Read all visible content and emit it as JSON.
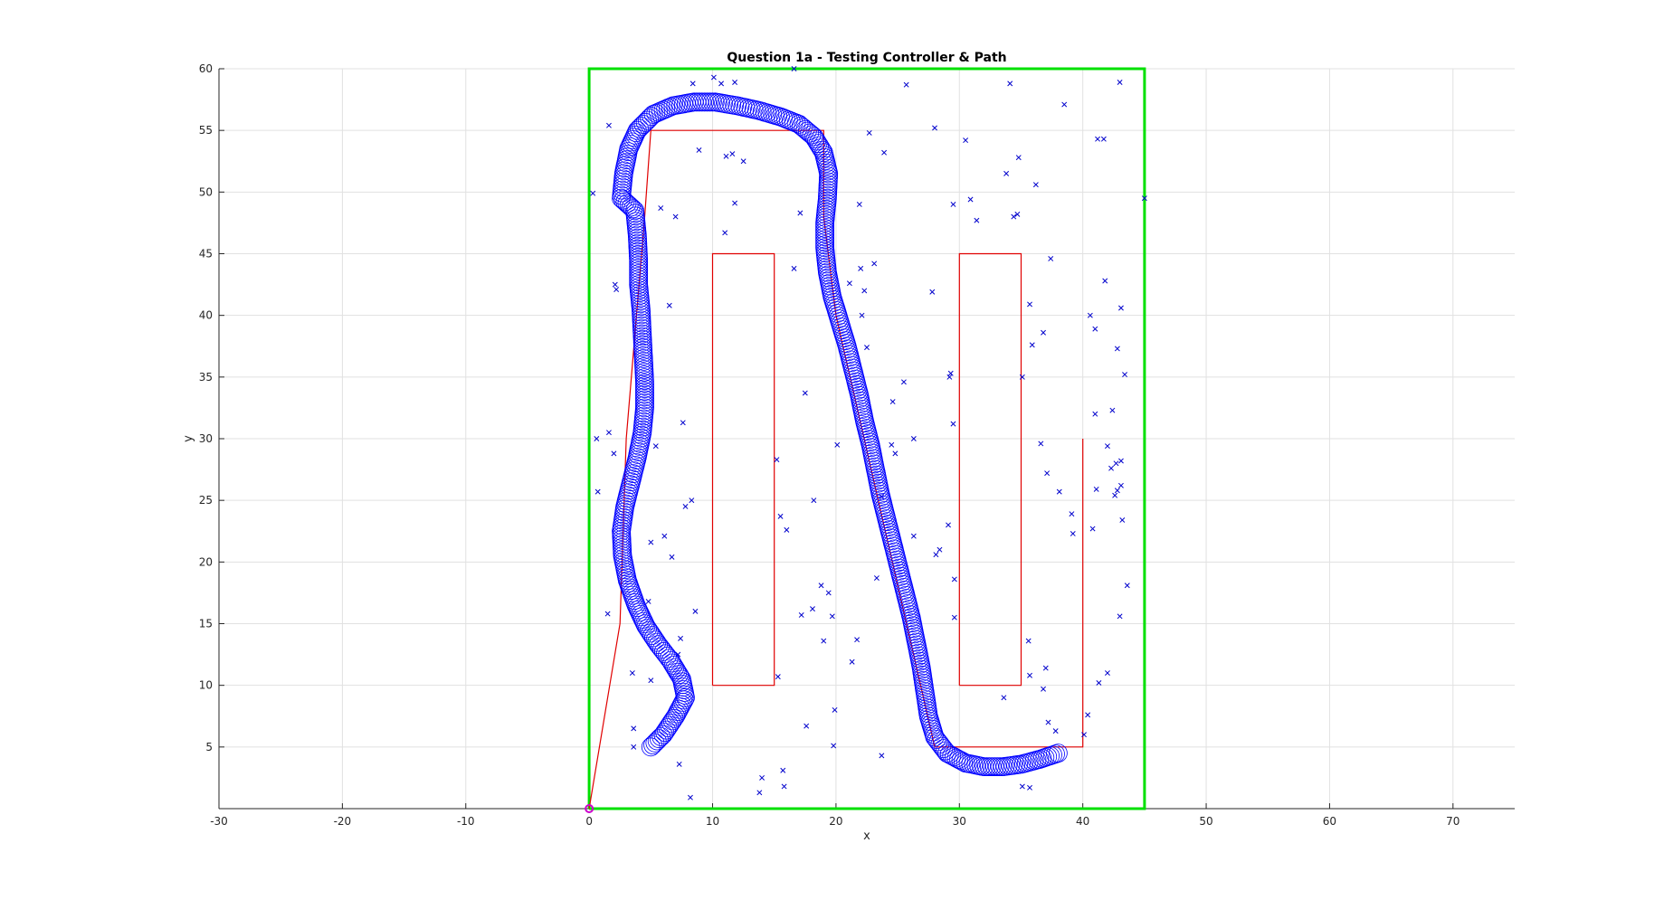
{
  "chart_data": {
    "type": "scatter",
    "title": "Question 1a - Testing Controller & Path",
    "xlabel": "x",
    "ylabel": "y",
    "xlim": [
      -30,
      75
    ],
    "ylim": [
      0,
      60
    ],
    "xticks": [
      -30,
      -20,
      -10,
      0,
      10,
      20,
      30,
      40,
      50,
      60,
      70
    ],
    "yticks": [
      5,
      10,
      15,
      20,
      25,
      30,
      35,
      40,
      45,
      50,
      55,
      60
    ],
    "grid": true,
    "colors": {
      "boundary": "#00e000",
      "obstacles": "#e00000",
      "path": "#e00000",
      "trajectory": "#0000ff",
      "samples": "#0000cc",
      "start": "#cc00cc"
    },
    "boundary": [
      [
        0,
        0
      ],
      [
        45,
        0
      ],
      [
        45,
        60
      ],
      [
        0,
        60
      ],
      [
        0,
        0
      ]
    ],
    "obstacles": [
      [
        [
          10,
          10
        ],
        [
          15,
          10
        ],
        [
          15,
          45
        ],
        [
          10,
          45
        ],
        [
          10,
          10
        ]
      ],
      [
        [
          30,
          10
        ],
        [
          35,
          10
        ],
        [
          35,
          45
        ],
        [
          30,
          45
        ],
        [
          30,
          10
        ]
      ]
    ],
    "path": [
      [
        0,
        0
      ],
      [
        2.5,
        15
      ],
      [
        3,
        30
      ],
      [
        4.5,
        48
      ],
      [
        5,
        55
      ],
      [
        19,
        55
      ],
      [
        19,
        48
      ],
      [
        20,
        40
      ],
      [
        28,
        5
      ],
      [
        40,
        5
      ],
      [
        40,
        30
      ]
    ],
    "trajectory": [
      [
        5,
        5
      ],
      [
        6,
        6
      ],
      [
        7,
        7.5
      ],
      [
        7.8,
        9
      ],
      [
        7.5,
        10.5
      ],
      [
        6.6,
        12
      ],
      [
        5.6,
        13.3
      ],
      [
        4.6,
        14.8
      ],
      [
        3.8,
        16.5
      ],
      [
        3.1,
        18.5
      ],
      [
        2.7,
        20.5
      ],
      [
        2.6,
        22.5
      ],
      [
        2.9,
        24.5
      ],
      [
        3.4,
        26.5
      ],
      [
        3.9,
        28.5
      ],
      [
        4.3,
        30.5
      ],
      [
        4.5,
        32.5
      ],
      [
        4.5,
        34.5
      ],
      [
        4.4,
        36.5
      ],
      [
        4.3,
        38.5
      ],
      [
        4.2,
        40.5
      ],
      [
        4,
        42.5
      ],
      [
        4,
        44.5
      ],
      [
        3.9,
        46.5
      ],
      [
        3.7,
        48.5
      ],
      [
        2.6,
        49.5
      ],
      [
        2.8,
        51.5
      ],
      [
        3.2,
        53.5
      ],
      [
        3.9,
        55
      ],
      [
        5.2,
        56.3
      ],
      [
        6.8,
        57
      ],
      [
        8.5,
        57.3
      ],
      [
        10.2,
        57.3
      ],
      [
        12,
        57
      ],
      [
        13.8,
        56.6
      ],
      [
        15.5,
        56.1
      ],
      [
        17,
        55.5
      ],
      [
        18.2,
        54.5
      ],
      [
        19,
        53.2
      ],
      [
        19.4,
        51.5
      ],
      [
        19.3,
        49.5
      ],
      [
        19.1,
        47.5
      ],
      [
        19.1,
        45.5
      ],
      [
        19.3,
        43.5
      ],
      [
        19.7,
        41.5
      ],
      [
        20.3,
        39.5
      ],
      [
        20.9,
        37.5
      ],
      [
        21.4,
        35.5
      ],
      [
        21.9,
        33.5
      ],
      [
        22.3,
        31.5
      ],
      [
        22.8,
        29.5
      ],
      [
        23.2,
        27.5
      ],
      [
        23.6,
        25.5
      ],
      [
        24.1,
        23.5
      ],
      [
        24.6,
        21.5
      ],
      [
        25.1,
        19.5
      ],
      [
        25.6,
        17.5
      ],
      [
        26.1,
        15.5
      ],
      [
        26.5,
        13.5
      ],
      [
        26.9,
        11.5
      ],
      [
        27.2,
        9.5
      ],
      [
        27.5,
        7.5
      ],
      [
        28,
        5.8
      ],
      [
        29,
        4.5
      ],
      [
        30.5,
        3.7
      ],
      [
        32,
        3.4
      ],
      [
        33.5,
        3.4
      ],
      [
        35,
        3.6
      ],
      [
        36.5,
        4
      ],
      [
        38,
        4.5
      ]
    ],
    "trajectory_radius_px": 10,
    "samples": [
      [
        0.3,
        49.9
      ],
      [
        1.6,
        55.4
      ],
      [
        0.6,
        30
      ],
      [
        1.6,
        30.5
      ],
      [
        2,
        28.8
      ],
      [
        0.7,
        25.7
      ],
      [
        2.1,
        42.5
      ],
      [
        2.2,
        42.1
      ],
      [
        1.5,
        15.8
      ],
      [
        3.5,
        11
      ],
      [
        3.6,
        6.5
      ],
      [
        3.6,
        5
      ],
      [
        5,
        10.4
      ],
      [
        4.8,
        16.8
      ],
      [
        5,
        21.6
      ],
      [
        5.4,
        29.4
      ],
      [
        5.8,
        48.7
      ],
      [
        6.1,
        22.1
      ],
      [
        6.5,
        40.8
      ],
      [
        6.7,
        20.4
      ],
      [
        7,
        48
      ],
      [
        7.2,
        12.5
      ],
      [
        7.4,
        13.8
      ],
      [
        7.3,
        3.6
      ],
      [
        7.6,
        31.3
      ],
      [
        7.8,
        24.5
      ],
      [
        8.3,
        25
      ],
      [
        8.2,
        0.9
      ],
      [
        8.6,
        16
      ],
      [
        8.4,
        58.8
      ],
      [
        8.9,
        53.4
      ],
      [
        10.1,
        59.3
      ],
      [
        10.7,
        58.8
      ],
      [
        11,
        46.7
      ],
      [
        11.1,
        52.9
      ],
      [
        11.6,
        53.1
      ],
      [
        11.8,
        49.1
      ],
      [
        12.5,
        52.5
      ],
      [
        11.8,
        58.9
      ],
      [
        14,
        2.5
      ],
      [
        13.8,
        1.3
      ],
      [
        15.2,
        28.3
      ],
      [
        15.3,
        10.7
      ],
      [
        15.5,
        23.7
      ],
      [
        15.7,
        3.1
      ],
      [
        15.8,
        1.8
      ],
      [
        16,
        22.6
      ],
      [
        16.6,
        43.8
      ],
      [
        16.6,
        60
      ],
      [
        17.1,
        48.3
      ],
      [
        17.2,
        15.7
      ],
      [
        17.5,
        33.7
      ],
      [
        17.6,
        6.7
      ],
      [
        18.1,
        16.2
      ],
      [
        18.2,
        25
      ],
      [
        18.8,
        18.1
      ],
      [
        19,
        13.6
      ],
      [
        19.4,
        17.5
      ],
      [
        19.7,
        15.6
      ],
      [
        19.8,
        5.1
      ],
      [
        19.9,
        8
      ],
      [
        20.1,
        29.5
      ],
      [
        21.1,
        42.6
      ],
      [
        21.3,
        11.9
      ],
      [
        21.7,
        13.7
      ],
      [
        21.9,
        49
      ],
      [
        22,
        43.8
      ],
      [
        22.1,
        40
      ],
      [
        22.3,
        42
      ],
      [
        22.5,
        37.4
      ],
      [
        22.7,
        54.8
      ],
      [
        23.1,
        44.2
      ],
      [
        23.3,
        18.7
      ],
      [
        23.7,
        4.3
      ],
      [
        23.7,
        25.3
      ],
      [
        23.9,
        53.2
      ],
      [
        24.5,
        29.5
      ],
      [
        24.6,
        33
      ],
      [
        24.8,
        28.8
      ],
      [
        25.5,
        34.6
      ],
      [
        25.7,
        58.7
      ],
      [
        26.3,
        30
      ],
      [
        26.3,
        22.1
      ],
      [
        27.8,
        41.9
      ],
      [
        28,
        55.2
      ],
      [
        28.1,
        20.6
      ],
      [
        28.4,
        21
      ],
      [
        29.1,
        23
      ],
      [
        29.2,
        35
      ],
      [
        29.3,
        35.3
      ],
      [
        29.5,
        31.2
      ],
      [
        29.6,
        18.6
      ],
      [
        29.6,
        15.5
      ],
      [
        29.5,
        49
      ],
      [
        30.5,
        54.2
      ],
      [
        30.9,
        49.4
      ],
      [
        31.4,
        47.7
      ],
      [
        33.6,
        9
      ],
      [
        33.8,
        51.5
      ],
      [
        34.1,
        58.8
      ],
      [
        34.4,
        48
      ],
      [
        34.7,
        48.2
      ],
      [
        34.8,
        52.8
      ],
      [
        35.1,
        35
      ],
      [
        35.1,
        1.8
      ],
      [
        35.7,
        1.7
      ],
      [
        35.6,
        13.6
      ],
      [
        35.7,
        10.8
      ],
      [
        35.7,
        40.9
      ],
      [
        35.9,
        37.6
      ],
      [
        36.2,
        50.6
      ],
      [
        36.6,
        29.6
      ],
      [
        36.8,
        38.6
      ],
      [
        37,
        11.4
      ],
      [
        36.8,
        9.7
      ],
      [
        37.1,
        27.2
      ],
      [
        37.2,
        7
      ],
      [
        37.4,
        44.6
      ],
      [
        37.8,
        6.3
      ],
      [
        38.1,
        25.7
      ],
      [
        38.5,
        57.1
      ],
      [
        39.1,
        23.9
      ],
      [
        39.2,
        22.3
      ],
      [
        40.1,
        6
      ],
      [
        40.4,
        7.6
      ],
      [
        40.6,
        40
      ],
      [
        40.8,
        22.7
      ],
      [
        41,
        38.9
      ],
      [
        41,
        32
      ],
      [
        41.1,
        25.9
      ],
      [
        41.2,
        54.3
      ],
      [
        41.3,
        10.2
      ],
      [
        41.7,
        54.3
      ],
      [
        41.8,
        42.8
      ],
      [
        42,
        11
      ],
      [
        42,
        29.4
      ],
      [
        42.3,
        27.6
      ],
      [
        42.4,
        32.3
      ],
      [
        42.6,
        25.4
      ],
      [
        42.7,
        28
      ],
      [
        42.8,
        37.3
      ],
      [
        42.8,
        25.8
      ],
      [
        43,
        58.9
      ],
      [
        43,
        15.6
      ],
      [
        43.1,
        26.2
      ],
      [
        43.1,
        28.2
      ],
      [
        43.1,
        40.6
      ],
      [
        43.2,
        23.4
      ],
      [
        43.4,
        35.2
      ],
      [
        43.6,
        18.1
      ],
      [
        45,
        49.5
      ]
    ],
    "start": [
      0,
      0
    ]
  }
}
